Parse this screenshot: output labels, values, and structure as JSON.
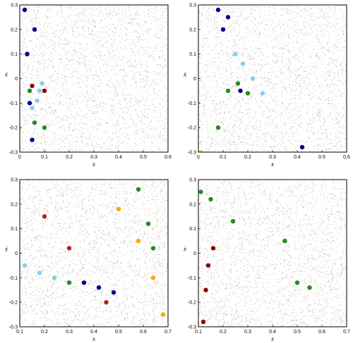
{
  "chart_data": [
    {
      "type": "scatter",
      "title": "",
      "xlabel": "x",
      "ylabel": "ẋ",
      "xlim": [
        0,
        0.6
      ],
      "ylim": [
        -0.3,
        0.3
      ],
      "xticks": [
        "0",
        "0.1",
        "0.2",
        "0.3",
        "0.4",
        "0.5",
        "0.6"
      ],
      "yticks": [
        "0.3",
        "0.2",
        "0.1",
        "0",
        "-0.1",
        "-0.2",
        "-0.3"
      ],
      "series": [
        {
          "color": "#00008b",
          "points": [
            [
              0.02,
              0.28
            ],
            [
              0.03,
              0.1
            ],
            [
              0.04,
              -0.1
            ],
            [
              0.05,
              -0.25
            ],
            [
              0.06,
              0.2
            ]
          ]
        },
        {
          "color": "#87ceeb",
          "points": [
            [
              0.05,
              -0.12
            ],
            [
              0.07,
              -0.09
            ],
            [
              0.08,
              -0.05
            ],
            [
              0.09,
              -0.02
            ]
          ]
        },
        {
          "color": "#228b22",
          "points": [
            [
              0.04,
              -0.05
            ],
            [
              0.06,
              -0.18
            ],
            [
              0.1,
              -0.2
            ]
          ]
        },
        {
          "color": "#8b0000",
          "points": [
            [
              0.05,
              -0.03
            ],
            [
              0.1,
              -0.05
            ]
          ]
        }
      ]
    },
    {
      "type": "scatter",
      "title": "",
      "xlabel": "x",
      "ylabel": "ẋ",
      "xlim": [
        0,
        0.6
      ],
      "ylim": [
        -0.3,
        0.3
      ],
      "xticks": [
        "0",
        "0.1",
        "0.2",
        "0.3",
        "0.4",
        "0.5",
        "0.6"
      ],
      "yticks": [
        "0.3",
        "0.2",
        "0.1",
        "0",
        "-0.1",
        "-0.2",
        "-0.3"
      ],
      "series": [
        {
          "color": "#00008b",
          "points": [
            [
              0.08,
              0.28
            ],
            [
              0.1,
              0.2
            ],
            [
              0.12,
              0.25
            ],
            [
              0.17,
              -0.05
            ],
            [
              0.42,
              -0.28
            ]
          ]
        },
        {
          "color": "#87ceeb",
          "points": [
            [
              0.15,
              0.1
            ],
            [
              0.18,
              0.06
            ],
            [
              0.22,
              0.0
            ],
            [
              0.26,
              -0.06
            ]
          ]
        },
        {
          "color": "#228b22",
          "points": [
            [
              0.12,
              -0.05
            ],
            [
              0.16,
              -0.02
            ],
            [
              0.2,
              -0.06
            ],
            [
              0.08,
              -0.2
            ]
          ]
        },
        {
          "color": "#ffd700",
          "points": [
            [
              0.01,
              -0.3
            ]
          ]
        }
      ]
    },
    {
      "type": "scatter",
      "title": "",
      "xlabel": "x",
      "ylabel": "ẋ",
      "xlim": [
        0.1,
        0.7
      ],
      "ylim": [
        -0.3,
        0.3
      ],
      "xticks": [
        "0.1",
        "0.2",
        "0.3",
        "0.4",
        "0.5",
        "0.6",
        "0.7"
      ],
      "yticks": [
        "0.3",
        "0.2",
        "0.1",
        "0",
        "-0.1",
        "-0.2",
        "-0.3"
      ],
      "series": [
        {
          "color": "#228b22",
          "points": [
            [
              0.58,
              0.26
            ],
            [
              0.62,
              0.12
            ],
            [
              0.64,
              0.02
            ],
            [
              0.3,
              -0.12
            ]
          ]
        },
        {
          "color": "#ffa500",
          "points": [
            [
              0.5,
              0.18
            ],
            [
              0.58,
              0.05
            ],
            [
              0.64,
              -0.1
            ],
            [
              0.68,
              -0.25
            ]
          ]
        },
        {
          "color": "#87ceeb",
          "points": [
            [
              0.12,
              -0.05
            ],
            [
              0.18,
              -0.08
            ],
            [
              0.24,
              -0.1
            ]
          ]
        },
        {
          "color": "#00008b",
          "points": [
            [
              0.36,
              -0.12
            ],
            [
              0.42,
              -0.14
            ],
            [
              0.48,
              -0.16
            ]
          ]
        },
        {
          "color": "#b22222",
          "points": [
            [
              0.2,
              0.15
            ],
            [
              0.3,
              0.02
            ],
            [
              0.45,
              -0.2
            ]
          ]
        }
      ]
    },
    {
      "type": "scatter",
      "title": "",
      "xlabel": "x",
      "ylabel": "ẋ",
      "xlim": [
        0.1,
        0.7
      ],
      "ylim": [
        -0.3,
        0.3
      ],
      "xticks": [
        "0.1",
        "0.2",
        "0.3",
        "0.4",
        "0.5",
        "0.6",
        "0.7"
      ],
      "yticks": [
        "0.3",
        "0.2",
        "0.1",
        "0",
        "-0.1",
        "-0.2",
        "-0.3"
      ],
      "series": [
        {
          "color": "#228b22",
          "points": [
            [
              0.11,
              0.25
            ],
            [
              0.15,
              0.22
            ],
            [
              0.24,
              0.13
            ],
            [
              0.45,
              0.05
            ]
          ]
        },
        {
          "color": "#8b0000",
          "points": [
            [
              0.12,
              -0.28
            ],
            [
              0.13,
              -0.15
            ],
            [
              0.14,
              -0.05
            ],
            [
              0.16,
              0.02
            ]
          ]
        },
        {
          "color": "#228b22",
          "points": [
            [
              0.5,
              -0.12
            ],
            [
              0.55,
              -0.14
            ]
          ]
        }
      ]
    }
  ]
}
